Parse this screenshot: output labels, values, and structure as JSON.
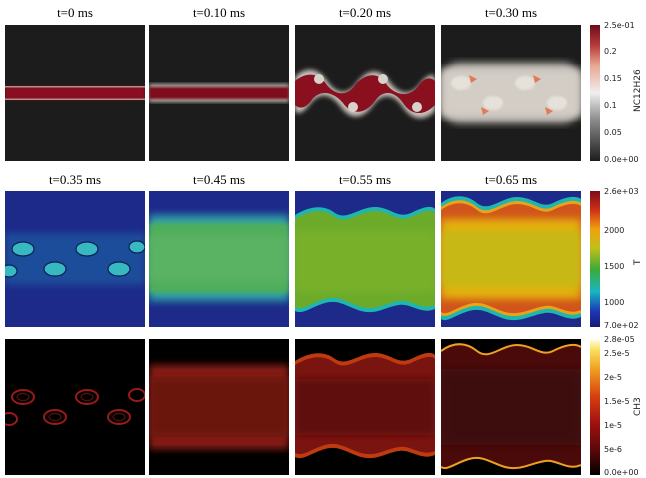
{
  "rows": [
    {
      "variable": "NC12H26",
      "titles": [
        "t=0 ms",
        "t=0.10 ms",
        "t=0.20 ms",
        "t=0.30 ms"
      ],
      "colorbar": {
        "max": "2.5e-01",
        "min": "0.0e+00",
        "ticks": [
          "0.2",
          "0.15",
          "0.1",
          "0.05"
        ]
      }
    },
    {
      "variable": "T",
      "titles": [
        "t=0.35 ms",
        "t=0.45 ms",
        "t=0.55 ms",
        "t=0.65 ms"
      ],
      "colorbar": {
        "max": "2.6e+03",
        "min": "7.0e+02",
        "ticks": [
          "2000",
          "1500",
          "1000"
        ]
      }
    },
    {
      "variable": "CH3",
      "titles": [
        "",
        "",
        "",
        ""
      ],
      "colorbar": {
        "max": "2.8e-05",
        "min": "0.0e+00",
        "ticks": [
          "2.5e-5",
          "2e-5",
          "1.5e-5",
          "1e-5",
          "5e-6"
        ]
      }
    }
  ]
}
